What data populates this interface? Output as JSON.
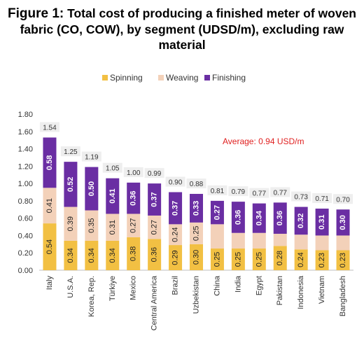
{
  "title_lead": "Figure 1:",
  "title_rest": " Total cost of producing a finished meter of woven fabric (CO, COW), by segment (UDSD/m), excluding raw material",
  "colors": {
    "Spinning": "#f2c043",
    "Weaving": "#f3d1b9",
    "Finishing": "#6a2ea3",
    "total_box": "#eeeeee",
    "average": "#e02020"
  },
  "chart_data": {
    "type": "bar",
    "stacked": true,
    "categories": [
      "Italy",
      "U.S.A.",
      "Korea, Rep.",
      "Türkiye",
      "Mexico",
      "Central America",
      "Brazil",
      "Uzbekistan",
      "China",
      "India",
      "Egypt",
      "Pakistan",
      "Indonesia",
      "Vietnam",
      "Bangladesh"
    ],
    "series": [
      {
        "name": "Spinning",
        "values": [
          0.54,
          0.34,
          0.34,
          0.34,
          0.38,
          0.36,
          0.29,
          0.3,
          0.25,
          0.25,
          0.25,
          0.28,
          0.24,
          0.23,
          0.23
        ]
      },
      {
        "name": "Weaving",
        "values": [
          0.41,
          0.39,
          0.35,
          0.31,
          0.27,
          0.27,
          0.24,
          0.25,
          0.28,
          0.18,
          0.18,
          0.14,
          0.17,
          0.17,
          0.17
        ]
      },
      {
        "name": "Finishing",
        "values": [
          0.58,
          0.52,
          0.5,
          0.41,
          0.36,
          0.37,
          0.37,
          0.33,
          0.27,
          0.36,
          0.34,
          0.36,
          0.32,
          0.31,
          0.3
        ]
      }
    ],
    "totals": [
      "1.54",
      "1.25",
      "1.19",
      "1.05",
      "1.00",
      "0.99",
      "0.90",
      "0.88",
      "0.81",
      "0.79",
      "0.77",
      "0.77",
      "0.73",
      "0.71",
      "0.70"
    ],
    "segment_labels": {
      "Spinning": [
        "0.54",
        "0.34",
        "0.34",
        "0.34",
        "0.38",
        "0.36",
        "0.29",
        "0.30",
        "0.25",
        "0.25",
        "0.25",
        "0.28",
        "0.24",
        "0.23",
        "0.23"
      ],
      "Weaving": [
        "0.41",
        "0.39",
        "0.35",
        "0.31",
        "0.27",
        "0.27",
        "0.24",
        "0.25",
        "",
        "",
        "",
        "",
        "",
        "",
        ""
      ],
      "Finishing": [
        "0.58",
        "0.52",
        "0.50",
        "0.41",
        "0.36",
        "0.37",
        "0.37",
        "0.33",
        "0.27",
        "0.36",
        "0.34",
        "0.36",
        "0.32",
        "0.31",
        "0.30"
      ]
    },
    "ylim": [
      0,
      1.8
    ],
    "yticks": [
      "0.00",
      "0.20",
      "0.40",
      "0.60",
      "0.80",
      "1.00",
      "1.20",
      "1.40",
      "1.60",
      "1.80"
    ],
    "legend": [
      "Spinning",
      "Weaving",
      "Finishing"
    ],
    "legend_position": "top",
    "annotation": "Average: 0.94 USD/m"
  }
}
